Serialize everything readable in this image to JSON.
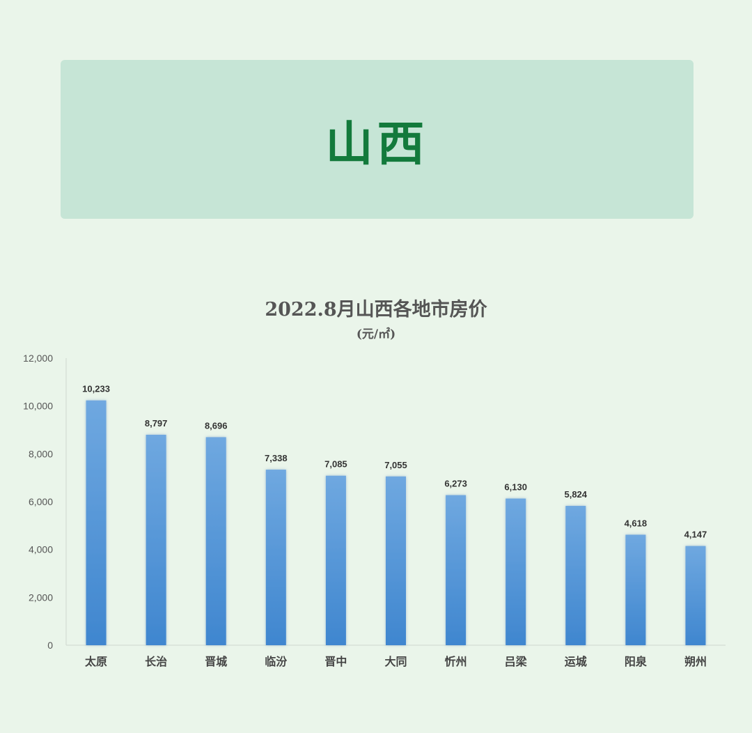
{
  "banner": {
    "title": "山西"
  },
  "chart_data": {
    "type": "bar",
    "title": "2022.8月山西各地市房价",
    "subtitle": "(元/㎡)",
    "xlabel": "",
    "ylabel": "",
    "ylim": [
      0,
      12000
    ],
    "yticks": [
      0,
      2000,
      4000,
      6000,
      8000,
      10000,
      12000
    ],
    "ytick_labels": [
      "0",
      "2,000",
      "4,000",
      "6,000",
      "8,000",
      "10,000",
      "12,000"
    ],
    "grid": false,
    "categories": [
      "太原",
      "长治",
      "晋城",
      "临汾",
      "晋中",
      "大同",
      "忻州",
      "吕梁",
      "运城",
      "阳泉",
      "朔州"
    ],
    "values": [
      10233,
      8797,
      8696,
      7338,
      7085,
      7055,
      6273,
      6130,
      5824,
      4618,
      4147
    ],
    "value_labels": [
      "10,233",
      "8,797",
      "8,696",
      "7,338",
      "7,085",
      "7,055",
      "6,273",
      "6,130",
      "5,824",
      "4,618",
      "4,147"
    ],
    "bar_color_top": "#6fa8e0",
    "bar_color_bottom": "#3f86cf"
  }
}
